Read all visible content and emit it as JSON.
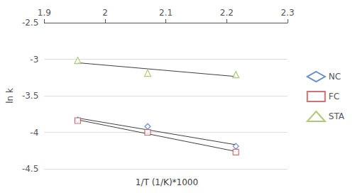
{
  "chart_data": {
    "type": "scatter",
    "xlabel": "1/T (1/K)*1000",
    "ylabel": "ln k",
    "xlim": [
      1.9,
      2.3
    ],
    "xticks": [
      1.9,
      2,
      2.1,
      2.2,
      2.3
    ],
    "ylim": [
      -4.5,
      -2.5
    ],
    "yticks": [
      -4.5,
      -4,
      -3.5,
      -3,
      -2.5
    ],
    "grid": true,
    "legend": "right",
    "series": [
      {
        "name": "NC",
        "color": "#4472c4",
        "marker": "diamond",
        "x": [
          1.955,
          2.07,
          2.215
        ],
        "values": [
          -3.83,
          -3.92,
          -4.19
        ],
        "trendline": {
          "color": "#404040",
          "x": [
            1.955,
            2.215
          ],
          "values": [
            -3.80437,
            -4.16968
          ]
        }
      },
      {
        "name": "FC",
        "color": "#c0504d",
        "marker": "square",
        "x": [
          1.955,
          2.07,
          2.215
        ],
        "values": [
          -3.84,
          -4.0,
          -4.27
        ],
        "trendline": {
          "color": "#404040",
          "x": [
            1.955,
            2.215
          ],
          "values": [
            -3.82883,
            -4.26114
          ]
        }
      },
      {
        "name": "STA",
        "color": "#9bbb59",
        "marker": "triangle",
        "x": [
          1.955,
          2.07,
          2.215
        ],
        "values": [
          -3.015,
          -3.19,
          -3.21
        ],
        "trendline": {
          "color": "#404040",
          "x": [
            1.955,
            2.215
          ],
          "values": [
            -3.04785,
            -3.23605
          ]
        }
      }
    ]
  }
}
